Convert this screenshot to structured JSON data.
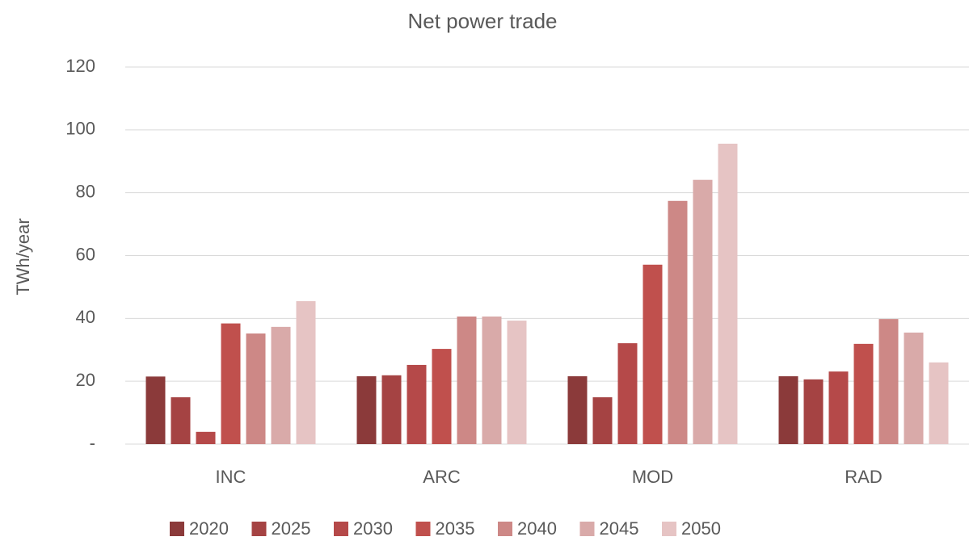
{
  "chart_data": {
    "type": "bar",
    "title": "Net power trade",
    "y_label": "TWh/year",
    "categories": [
      "INC",
      "ARC",
      "MOD",
      "RAD"
    ],
    "series": [
      {
        "name": "2020",
        "color": "#8b3a3a",
        "values": [
          21.5,
          21.6,
          21.6,
          21.6
        ]
      },
      {
        "name": "2025",
        "color": "#a54343",
        "values": [
          14.9,
          21.9,
          14.9,
          20.6
        ]
      },
      {
        "name": "2030",
        "color": "#b54949",
        "values": [
          3.9,
          25.2,
          32.1,
          23.1
        ]
      },
      {
        "name": "2035",
        "color": "#c0504d",
        "values": [
          38.4,
          30.3,
          57.1,
          31.9
        ]
      },
      {
        "name": "2040",
        "color": "#cd8886",
        "values": [
          35.2,
          40.6,
          77.4,
          39.8
        ]
      },
      {
        "name": "2045",
        "color": "#d9aaa9",
        "values": [
          37.3,
          40.6,
          84.1,
          35.5
        ]
      },
      {
        "name": "2050",
        "color": "#e6c4c4",
        "values": [
          45.5,
          39.3,
          95.6,
          26.0
        ]
      }
    ],
    "ylim": [
      0,
      120
    ],
    "yticks": [
      {
        "value": 0,
        "label": "-"
      },
      20,
      40,
      60,
      80,
      100,
      120
    ],
    "grid": true,
    "legend": "bottom"
  }
}
